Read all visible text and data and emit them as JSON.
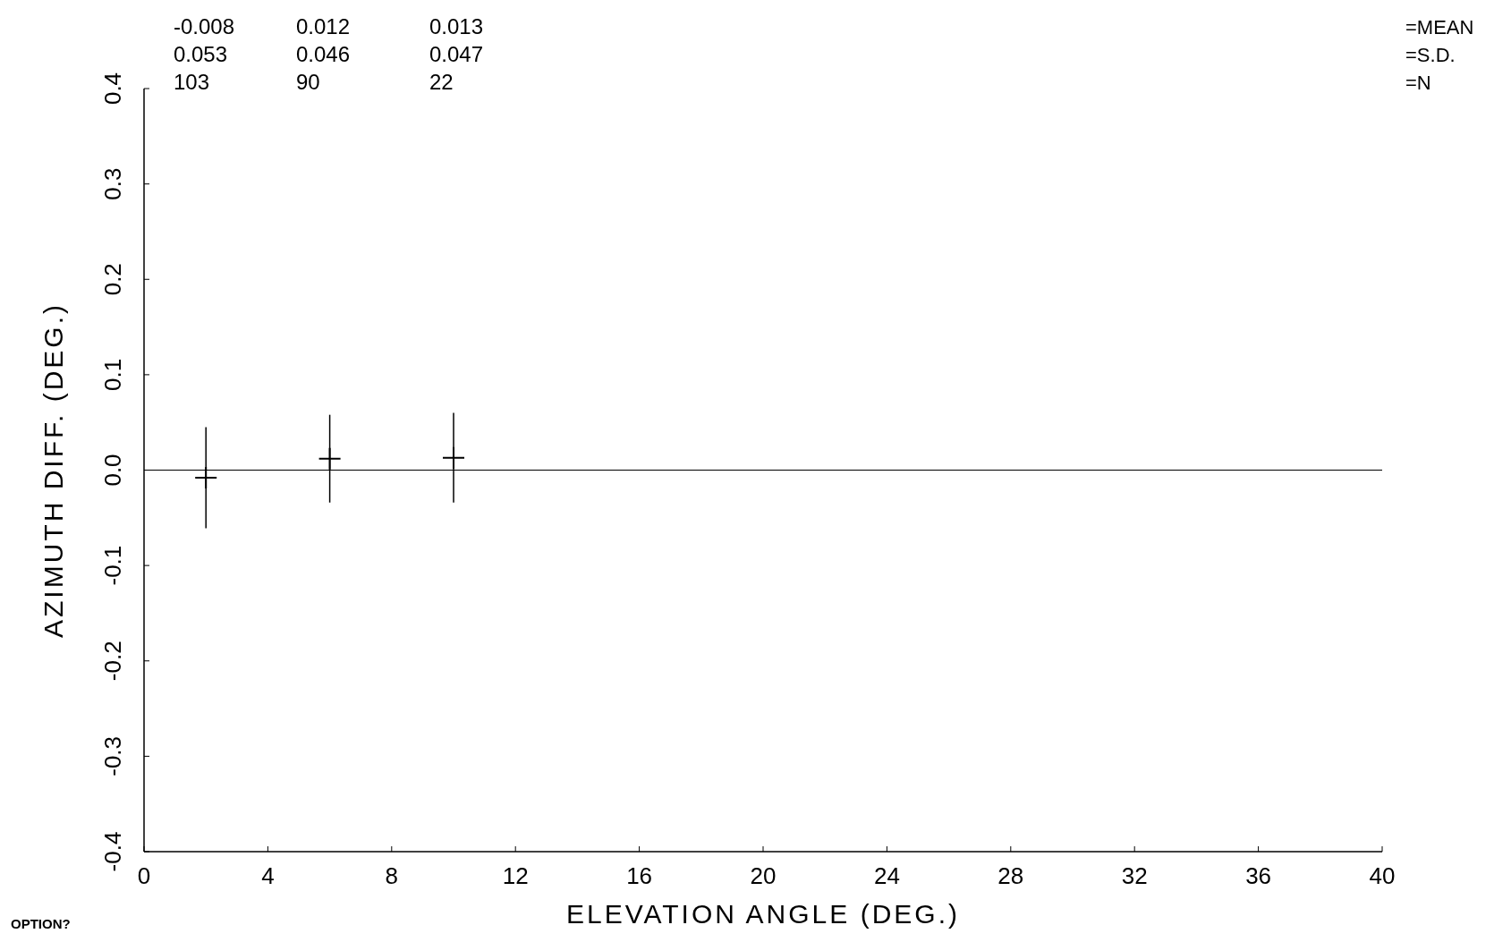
{
  "chart_data": {
    "type": "scatter",
    "xlabel": "ELEVATION ANGLE (DEG.)",
    "ylabel": "AZIMUTH DIFF. (DEG.)",
    "x": [
      2,
      6,
      10
    ],
    "values": [
      -0.008,
      0.012,
      0.013
    ],
    "errors": [
      0.053,
      0.046,
      0.047
    ],
    "color": "#000000",
    "marker": "cross",
    "xlim": [
      0,
      40
    ],
    "xticks": [
      0,
      4,
      8,
      12,
      16,
      20,
      24,
      28,
      32,
      36,
      40
    ],
    "ylim": [
      -0.4,
      0.4
    ],
    "yticks": [
      {
        "value": -0.4,
        "label": "-0.4"
      },
      {
        "value": -0.3,
        "label": "-0.3"
      },
      {
        "value": -0.2,
        "label": "-0.2"
      },
      {
        "value": -0.1,
        "label": "-0.1"
      },
      {
        "value": 0,
        "label": "0.0"
      },
      {
        "value": 0.1,
        "label": "0.1"
      },
      {
        "value": 0.2,
        "label": "0.2"
      },
      {
        "value": 0.3,
        "label": "0.3"
      },
      {
        "value": 0.4,
        "label": "0.4"
      }
    ],
    "ref_lines": [
      {
        "axis": "y",
        "value": 0
      }
    ],
    "annotations": [
      "-0.008",
      "0.012",
      "0.013",
      "0.053",
      "0.046",
      "0.047",
      "103",
      "90",
      "22",
      "=MEAN",
      "=S.D.",
      "=N",
      "OPTION?"
    ]
  }
}
